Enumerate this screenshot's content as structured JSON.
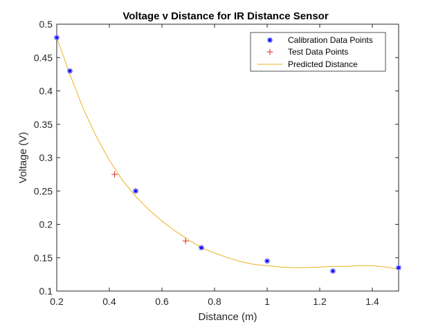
{
  "chart_data": {
    "type": "scatter",
    "title": "Voltage v Distance for IR Distance Sensor",
    "xlabel": "Distance (m)",
    "ylabel": "Voltage (V)",
    "xlim": [
      0.2,
      1.5
    ],
    "ylim": [
      0.1,
      0.5
    ],
    "xticks": [
      0.2,
      0.4,
      0.6,
      0.8,
      1,
      1.2,
      1.4
    ],
    "xtick_labels": [
      "0.2",
      "0.4",
      "0.6",
      "0.8",
      "1",
      "1.2",
      "1.4"
    ],
    "yticks": [
      0.1,
      0.15,
      0.2,
      0.25,
      0.3,
      0.35,
      0.4,
      0.45,
      0.5
    ],
    "ytick_labels": [
      "0.1",
      "0.15",
      "0.2",
      "0.25",
      "0.3",
      "0.35",
      "0.4",
      "0.45",
      "0.5"
    ],
    "grid": false,
    "legend_position": "top-right",
    "series": [
      {
        "name": "Calibration Data Points",
        "kind": "scatter",
        "marker": "asterisk",
        "color": "#0000ff",
        "x": [
          0.2,
          0.25,
          0.5,
          0.75,
          1.0,
          1.25,
          1.5
        ],
        "y": [
          0.48,
          0.43,
          0.25,
          0.165,
          0.145,
          0.13,
          0.135
        ]
      },
      {
        "name": "Test Data Points",
        "kind": "scatter",
        "marker": "plus",
        "color": "#d62728",
        "x": [
          0.42,
          0.69
        ],
        "y": [
          0.275,
          0.175
        ]
      },
      {
        "name": "Predicted Distance",
        "kind": "line",
        "color": "#edb120",
        "x": [
          0.2,
          0.25,
          0.3,
          0.35,
          0.4,
          0.45,
          0.5,
          0.55,
          0.6,
          0.65,
          0.7,
          0.75,
          0.8,
          0.85,
          0.9,
          0.95,
          1.0,
          1.05,
          1.1,
          1.15,
          1.2,
          1.25,
          1.3,
          1.35,
          1.4,
          1.45,
          1.5
        ],
        "y": [
          0.48,
          0.425,
          0.374,
          0.332,
          0.296,
          0.266,
          0.242,
          0.222,
          0.205,
          0.19,
          0.177,
          0.165,
          0.157,
          0.15,
          0.144,
          0.14,
          0.138,
          0.136,
          0.135,
          0.135,
          0.136,
          0.137,
          0.137,
          0.138,
          0.138,
          0.136,
          0.133
        ]
      }
    ]
  }
}
